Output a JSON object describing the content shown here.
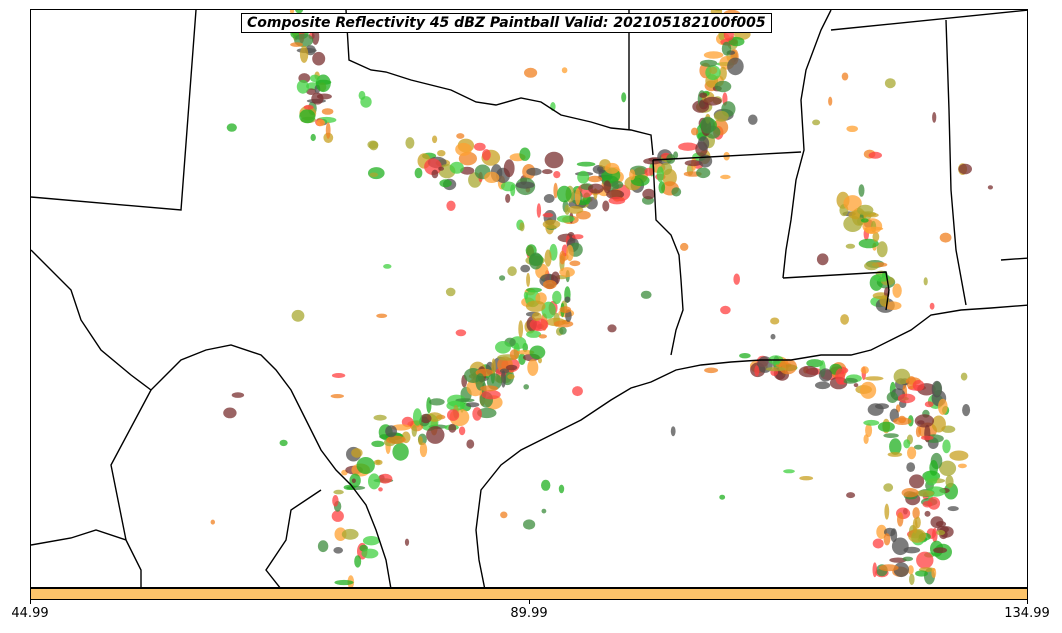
{
  "title": "Composite Reflectivity 45 dBZ Paintball Valid: 202105182100f005",
  "colorbar": {
    "color": "#fdc46a",
    "ticks": [
      "44.99",
      "89.99",
      "134.99"
    ]
  },
  "colors": {
    "boundary": "#000000",
    "paintball_palette": [
      "#ff4040",
      "#f08020",
      "#ffa030",
      "#c8a020",
      "#a8a830",
      "#40d040",
      "#20b020",
      "#3c8c3c",
      "#7a3030",
      "#505050"
    ]
  }
}
